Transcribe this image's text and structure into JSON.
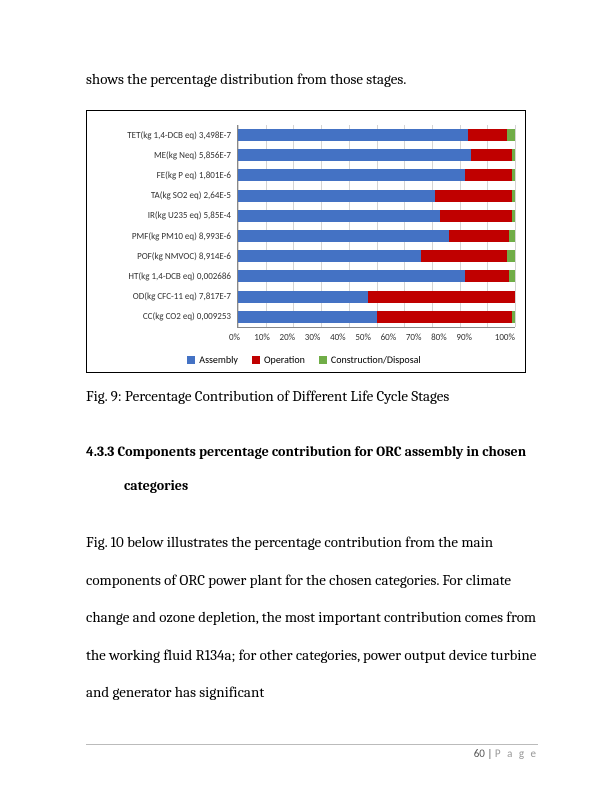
{
  "topline": "shows the percentage distribution from those stages.",
  "chart": {
    "type": "stacked-bar-horizontal",
    "categories": [
      "TET(kg 1,4-DCB eq)  3,498E-7",
      "ME(kg Neq)  5,856E-7",
      "FE(kg P eq)  1,801E-6",
      "TA(kg SO2 eq)  2,64E-5",
      "IR(kg U235 eq)  5,85E-4",
      "PMF(kg PM10 eq)  8,993E-6",
      "POF(kg NMVOC)  8,914E-6",
      "HT(kg 1,4-DCB eq)  0,002686",
      "OD(kg CFC-11 eq)  7,817E-7",
      "CC(kg CO2 eq)  0,009253"
    ],
    "series": [
      {
        "name": "Assembly",
        "color": "#4472c4"
      },
      {
        "name": "Operation",
        "color": "#c00000"
      },
      {
        "name": "Construction/Disposal",
        "color": "#70ad47"
      }
    ],
    "rows": [
      {
        "a": 83,
        "b": 14,
        "c": 3
      },
      {
        "a": 84,
        "b": 15,
        "c": 1
      },
      {
        "a": 82,
        "b": 17,
        "c": 1
      },
      {
        "a": 71,
        "b": 28,
        "c": 1
      },
      {
        "a": 73,
        "b": 26,
        "c": 1
      },
      {
        "a": 76,
        "b": 22,
        "c": 2
      },
      {
        "a": 66,
        "b": 31,
        "c": 3
      },
      {
        "a": 82,
        "b": 16,
        "c": 2
      },
      {
        "a": 47,
        "b": 53,
        "c": 0
      },
      {
        "a": 50,
        "b": 49,
        "c": 1
      }
    ],
    "xticks": [
      "0%",
      "10%",
      "20%",
      "30%",
      "40%",
      "50%",
      "60%",
      "70%",
      "80%",
      "90%",
      "100%"
    ],
    "grid_color": "#d4d4d4",
    "background_color": "#ffffff"
  },
  "caption": "Fig. 9: Percentage Contribution of  Different Life Cycle Stages",
  "section_number": "4.3.3",
  "section_title_line1": "Components percentage contribution for ORC assembly in chosen",
  "section_title_line2": "categories",
  "body_p1": "Fig. 10 below illustrates the percentage contribution from the main components of ORC power plant for the chosen categories. For climate change and ozone depletion, the most important contribution comes from the working fluid R134a; for other categories, power output device turbine and generator has significant",
  "footer_page": "60",
  "footer_label": "P a g e"
}
